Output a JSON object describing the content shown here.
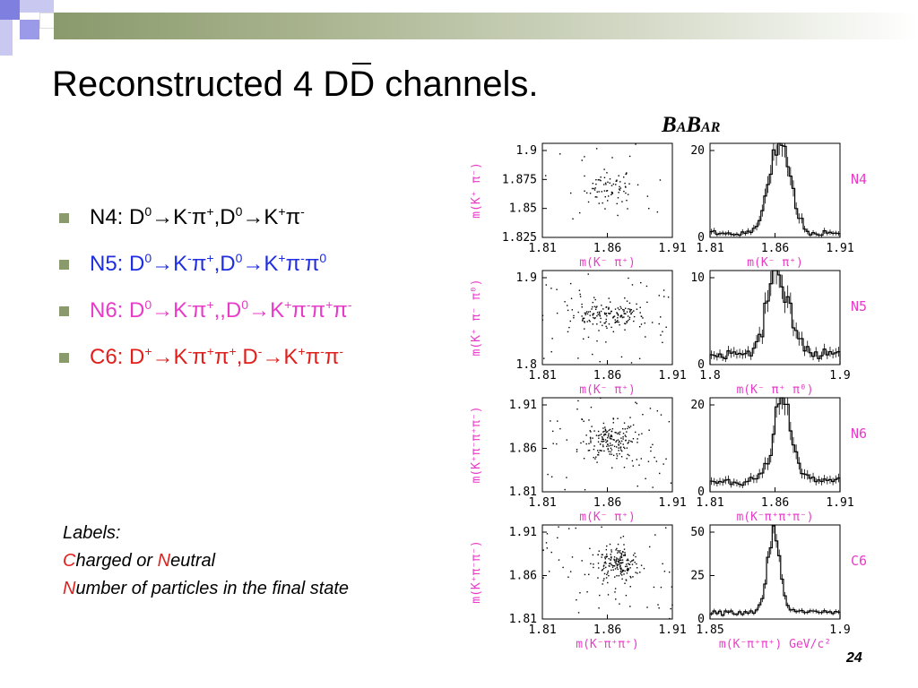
{
  "slide": {
    "title_prefix": "Reconstructed 4 D",
    "title_dbar": "D",
    "title_suffix": " channels.",
    "page_number": "24",
    "logo": "BABAR"
  },
  "bullets": [
    {
      "label": "N4: D",
      "color": "#000000",
      "text": "N4: D⁰→K⁻π⁺,D⁰→K⁺π⁻"
    },
    {
      "label": "N5: D",
      "color": "#1f2ee0",
      "text": "N5: D⁰→K⁻π⁺,D⁰→K⁺π⁻π⁰"
    },
    {
      "label": "N6: D",
      "color": "#e83cc8",
      "text": "N6: D⁰→K⁻π⁺,,D⁰→K⁺π⁻π⁺π⁻"
    },
    {
      "label": "C6: D",
      "color": "#e0201c",
      "text": "C6: D⁺→K⁻π⁺π⁺,D⁻→K⁺π⁻π⁻"
    }
  ],
  "labels": {
    "heading": "Labels:",
    "line1_letter": "C",
    "line1_rest": "harged or ",
    "line1_letter2": "N",
    "line1_rest2": "eutral",
    "line2_letter": "N",
    "line2_rest": "umber of particles in the final state"
  },
  "chart_data": [
    {
      "type": "scatter",
      "channel": "N4",
      "xlabel": "m(K⁻ π⁺)",
      "ylabel": "m(K⁺ π⁻)",
      "xticks": [
        "1.81",
        "1.86",
        "1.91"
      ],
      "yticks": [
        "1.9",
        "1.875",
        "1.85",
        "1.825"
      ],
      "xlim": [
        1.81,
        1.91
      ],
      "ylim": [
        1.81,
        1.91
      ],
      "center": [
        1.861,
        1.864
      ],
      "spread": 0.009,
      "n_points": 90
    },
    {
      "type": "histogram",
      "channel": "N4",
      "xlabel": "m(K⁻ π⁺)",
      "xticks": [
        "1.81",
        "1.86",
        "1.91"
      ],
      "yticks": [
        "20",
        "0"
      ],
      "xlim": [
        1.81,
        1.91
      ],
      "ylim": [
        0,
        25
      ],
      "peak": 24,
      "mean": 1.864,
      "sigma": 0.008,
      "background": 1
    },
    {
      "type": "scatter",
      "channel": "N5",
      "xlabel": "m(K⁻ π⁺)",
      "ylabel": "m(K⁺ π⁻ π⁰)",
      "xticks": [
        "1.81",
        "1.86",
        "1.91"
      ],
      "yticks": [
        "1.9",
        "1.8"
      ],
      "xlim": [
        1.81,
        1.91
      ],
      "ylim": [
        1.77,
        1.95
      ],
      "center": [
        1.862,
        1.865
      ],
      "spread": 0.014,
      "n_points": 200
    },
    {
      "type": "histogram",
      "channel": "N5",
      "xlabel": "m(K⁻ π⁺ π⁰)",
      "xticks": [
        "1.8",
        "1.9"
      ],
      "yticks": [
        "10",
        "0"
      ],
      "xlim": [
        1.76,
        1.96
      ],
      "ylim": [
        0,
        18
      ],
      "peak": 15,
      "mean": 1.865,
      "sigma": 0.018,
      "background": 2
    },
    {
      "type": "scatter",
      "channel": "N6",
      "xlabel": "m(K⁻ π⁺)",
      "ylabel": "m(K⁺π⁻π⁺π⁻)",
      "xticks": [
        "1.81",
        "1.86",
        "1.91"
      ],
      "yticks": [
        "1.91",
        "1.86",
        "1.81"
      ],
      "xlim": [
        1.81,
        1.91
      ],
      "ylim": [
        1.81,
        1.91
      ],
      "center": [
        1.862,
        1.864
      ],
      "spread": 0.01,
      "n_points": 220
    },
    {
      "type": "histogram",
      "channel": "N6",
      "xlabel": "m(K⁻π⁺π⁺π⁻)",
      "xticks": [
        "1.81",
        "1.86",
        "1.91"
      ],
      "yticks": [
        "20",
        "0"
      ],
      "xlim": [
        1.81,
        1.91
      ],
      "ylim": [
        0,
        25
      ],
      "peak": 22,
      "mean": 1.866,
      "sigma": 0.007,
      "background": 3
    },
    {
      "type": "scatter",
      "channel": "C6",
      "xlabel": "m(K⁻π⁺π⁺)",
      "ylabel": "m(K⁺π⁻π⁻)",
      "xticks": [
        "1.81",
        "1.86",
        "1.91"
      ],
      "yticks": [
        "1.91",
        "1.86",
        "1.81"
      ],
      "xlim": [
        1.81,
        1.91
      ],
      "ylim": [
        1.81,
        1.91
      ],
      "center": [
        1.868,
        1.868
      ],
      "spread": 0.009,
      "n_points": 230
    },
    {
      "type": "histogram",
      "channel": "C6",
      "xlabel": "m(K⁻π⁺π⁺) GeV/c²",
      "xticks": [
        "1.85",
        "1.9"
      ],
      "yticks": [
        "50",
        "25",
        "0"
      ],
      "xlim": [
        1.81,
        1.93
      ],
      "ylim": [
        0,
        55
      ],
      "peak": 46,
      "mean": 1.869,
      "sigma": 0.006,
      "background": 4
    }
  ]
}
